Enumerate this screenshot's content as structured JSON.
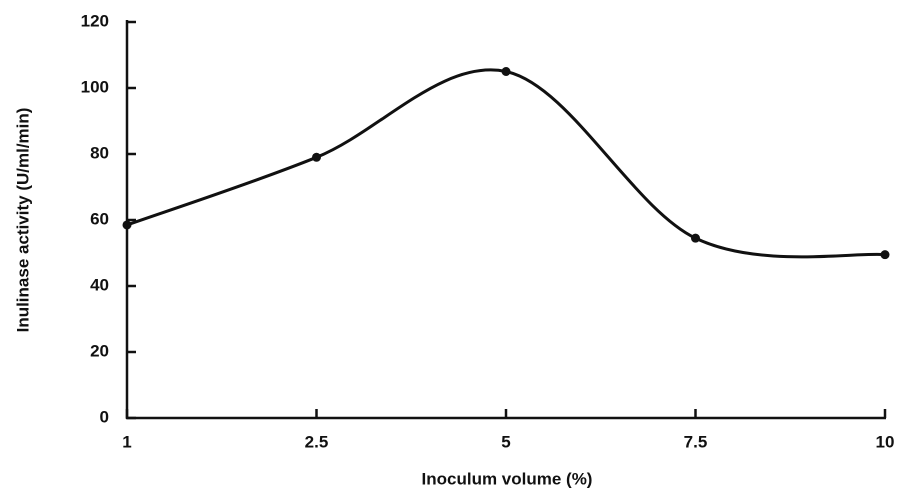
{
  "chart_data": {
    "type": "line",
    "x_label": "Inoculum volume (%)",
    "y_label": "Inulinase activity (U/ml/min)",
    "categories": [
      "1",
      "2.5",
      "5",
      "7.5",
      "10"
    ],
    "series": [
      {
        "name": "Inulinase activity",
        "color": "#111111",
        "values": [
          58.5,
          79,
          105,
          54.5,
          49.5
        ]
      }
    ],
    "ylim": [
      0,
      120
    ],
    "yticks": [
      0,
      20,
      40,
      60,
      80,
      100,
      120
    ],
    "smooth": true
  }
}
